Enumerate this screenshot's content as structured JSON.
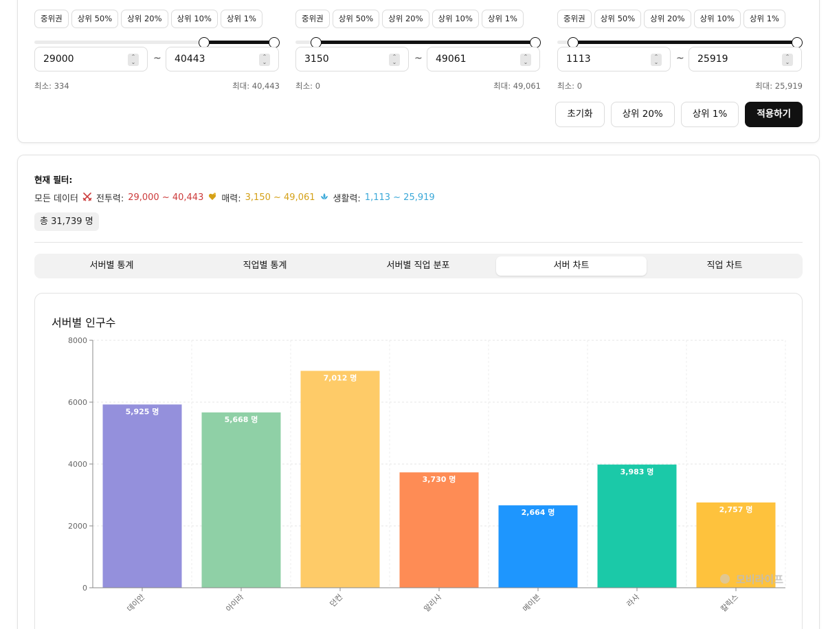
{
  "filters": [
    {
      "stat": "전투력",
      "presets": [
        "중위권",
        "상위 50%",
        "상위 20%",
        "상위 10%",
        "상위 1%"
      ],
      "value_min": "29000",
      "value_max": "40443",
      "min_label": "최소: 334",
      "max_label": "최대: 40,443",
      "range_fraction": [
        0.7,
        1.0
      ]
    },
    {
      "stat": "매력",
      "presets": [
        "중위권",
        "상위 50%",
        "상위 20%",
        "상위 10%",
        "상위 1%"
      ],
      "value_min": "3150",
      "value_max": "49061",
      "min_label": "최소: 0",
      "max_label": "최대: 49,061",
      "range_fraction": [
        0.064,
        1.0
      ]
    },
    {
      "stat": "생활력",
      "presets": [
        "중위권",
        "상위 50%",
        "상위 20%",
        "상위 10%",
        "상위 1%"
      ],
      "value_min": "1113",
      "value_max": "25919",
      "min_label": "최소: 0",
      "max_label": "최대: 25,919",
      "range_fraction": [
        0.043,
        1.0
      ]
    }
  ],
  "actions": {
    "reset": "초기화",
    "top20": "상위 20%",
    "top1": "상위 1%",
    "apply": "적용하기"
  },
  "current_filter": {
    "title": "현재 필터:",
    "data_label": "모든 데이터",
    "combat_label": "전투력:",
    "combat_range": "29,000 ~ 40,443",
    "charm_label": "매력:",
    "charm_range": "3,150 ~ 49,061",
    "life_label": "생활력:",
    "life_range": "1,113 ~ 25,919",
    "total": "총 31,739 명",
    "colors": {
      "combat": "#cc3a3a",
      "charm": "#d4a017",
      "life": "#3aa8d8"
    }
  },
  "tabs": [
    "서버별 통계",
    "직업별 통계",
    "서버별 직업 분포",
    "서버 차트",
    "직업 차트"
  ],
  "active_tab": 3,
  "chart_title": "서버별 인구수",
  "watermark": "모비라이프",
  "chart_data": {
    "type": "bar",
    "title": "서버별 인구수",
    "categories": [
      "데이안",
      "아이라",
      "던컨",
      "알리사",
      "메이븐",
      "라사",
      "칼릭스"
    ],
    "values": [
      5925,
      5668,
      7012,
      3730,
      2664,
      3983,
      2757
    ],
    "value_labels": [
      "5,925 명",
      "5,668 명",
      "7,012 명",
      "3,730 명",
      "2,664 명",
      "3,983 명",
      "2,757 명"
    ],
    "colors": [
      "#9490dc",
      "#8fd0a6",
      "#fecb68",
      "#fe8c55",
      "#1e96fe",
      "#1bc9a8",
      "#fec23d"
    ],
    "yticks": [
      0,
      2000,
      4000,
      6000,
      8000
    ],
    "ylim": [
      0,
      8000
    ],
    "grid": true
  }
}
